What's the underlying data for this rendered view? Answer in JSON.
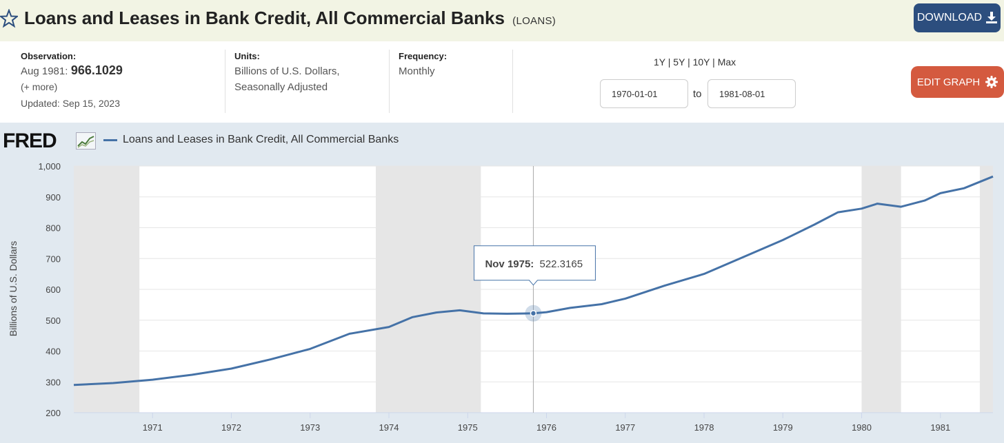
{
  "header": {
    "title": "Loans and Leases in Bank Credit, All Commercial Banks",
    "series_id": "(LOANS)",
    "download_label": "DOWNLOAD"
  },
  "info": {
    "observation_label": "Observation:",
    "observation_date": "Aug 1981:",
    "observation_value": "966.1029",
    "more": "(+ more)",
    "updated": "Updated: Sep 15, 2023",
    "units_label": "Units:",
    "units_line1": "Billions of U.S. Dollars,",
    "units_line2": "Seasonally Adjusted",
    "frequency_label": "Frequency:",
    "frequency_value": "Monthly",
    "range_1y": "1Y",
    "range_5y": "5Y",
    "range_10y": "10Y",
    "range_max": "Max",
    "sep": "|",
    "start_date": "1970-01-01",
    "to_label": "to",
    "end_date": "1981-08-01",
    "edit_label": "EDIT GRAPH"
  },
  "chart": {
    "logo": "FRED",
    "legend": "Loans and Leases in Bank Credit, All Commercial Banks",
    "tooltip_date": "Nov 1975:",
    "tooltip_value": "522.3165"
  },
  "colors": {
    "series": "#4572a7",
    "recession": "#e6e6e6",
    "header_bg": "#f2f4e4",
    "download_bg": "#2c4e7e",
    "edit_bg": "#d45a3f"
  },
  "chart_data": {
    "type": "line",
    "title": "",
    "xlabel": "",
    "ylabel": "Billions of U.S. Dollars",
    "xlim": [
      1970.0,
      1981.667
    ],
    "ylim": [
      200,
      1000
    ],
    "yticks": [
      "1,000",
      "900",
      "800",
      "700",
      "600",
      "500",
      "400",
      "300",
      "200"
    ],
    "ytick_values": [
      1000,
      900,
      800,
      700,
      600,
      500,
      400,
      300,
      200
    ],
    "xticks": [
      "1971",
      "1972",
      "1973",
      "1974",
      "1975",
      "1976",
      "1977",
      "1978",
      "1979",
      "1980",
      "1981"
    ],
    "xtick_values": [
      1971,
      1972,
      1973,
      1974,
      1975,
      1976,
      1977,
      1978,
      1979,
      1980,
      1981
    ],
    "recessions": [
      [
        1970.0,
        1970.833
      ],
      [
        1973.833,
        1975.167
      ],
      [
        1980.0,
        1980.5
      ],
      [
        1981.5,
        1981.667
      ]
    ],
    "highlight": {
      "x": 1975.833,
      "y": 522.3165
    },
    "series": [
      {
        "name": "Loans and Leases in Bank Credit, All Commercial Banks",
        "x": [
          1970.0,
          1970.5,
          1971.0,
          1971.5,
          1972.0,
          1972.5,
          1973.0,
          1973.5,
          1974.0,
          1974.3,
          1974.6,
          1974.9,
          1975.2,
          1975.5,
          1975.833,
          1976.0,
          1976.3,
          1976.7,
          1977.0,
          1977.5,
          1978.0,
          1978.5,
          1979.0,
          1979.4,
          1979.7,
          1980.0,
          1980.2,
          1980.5,
          1980.8,
          1981.0,
          1981.3,
          1981.667
        ],
        "y": [
          290,
          296,
          307,
          323,
          343,
          373,
          407,
          456,
          478,
          510,
          525,
          532,
          522,
          521,
          522.3,
          526,
          540,
          552,
          570,
          612,
          650,
          705,
          760,
          810,
          850,
          862,
          878,
          868,
          888,
          912,
          928,
          966
        ]
      }
    ]
  }
}
